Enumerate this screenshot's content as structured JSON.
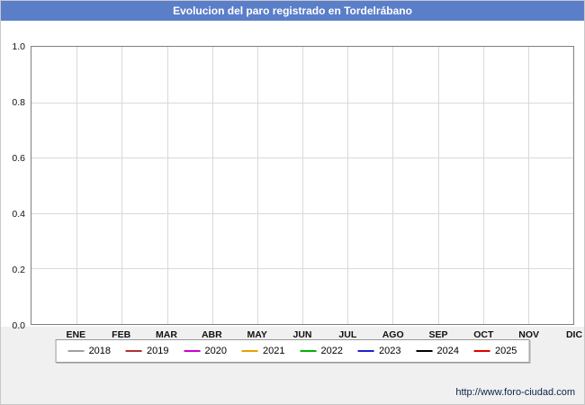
{
  "title": "Evolucion del paro registrado en Tordelrábano",
  "colors": {
    "title_bar": "#5b7ec9",
    "plot_border": "#808080",
    "grid": "#d9d9d9",
    "background": "#f0f0f0"
  },
  "chart_data": {
    "type": "line",
    "title": "Evolucion del paro registrado en Tordelrábano",
    "categories": [
      "ENE",
      "FEB",
      "MAR",
      "ABR",
      "MAY",
      "JUN",
      "JUL",
      "AGO",
      "SEP",
      "OCT",
      "NOV",
      "DIC"
    ],
    "y_ticks": [
      "0.0",
      "0.2",
      "0.4",
      "0.6",
      "0.8",
      "1.0"
    ],
    "ylim": [
      0,
      1
    ],
    "grid": true,
    "legend_position": "bottom",
    "series": [
      {
        "name": "2018",
        "color": "#a0a0a0",
        "values": []
      },
      {
        "name": "2019",
        "color": "#b03030",
        "values": []
      },
      {
        "name": "2020",
        "color": "#cc00cc",
        "values": []
      },
      {
        "name": "2021",
        "color": "#e8a000",
        "values": []
      },
      {
        "name": "2022",
        "color": "#00b400",
        "values": []
      },
      {
        "name": "2023",
        "color": "#2020cc",
        "values": []
      },
      {
        "name": "2024",
        "color": "#000000",
        "values": []
      },
      {
        "name": "2025",
        "color": "#e00000",
        "values": []
      }
    ]
  },
  "footer": {
    "link": "http://www.foro-ciudad.com"
  }
}
